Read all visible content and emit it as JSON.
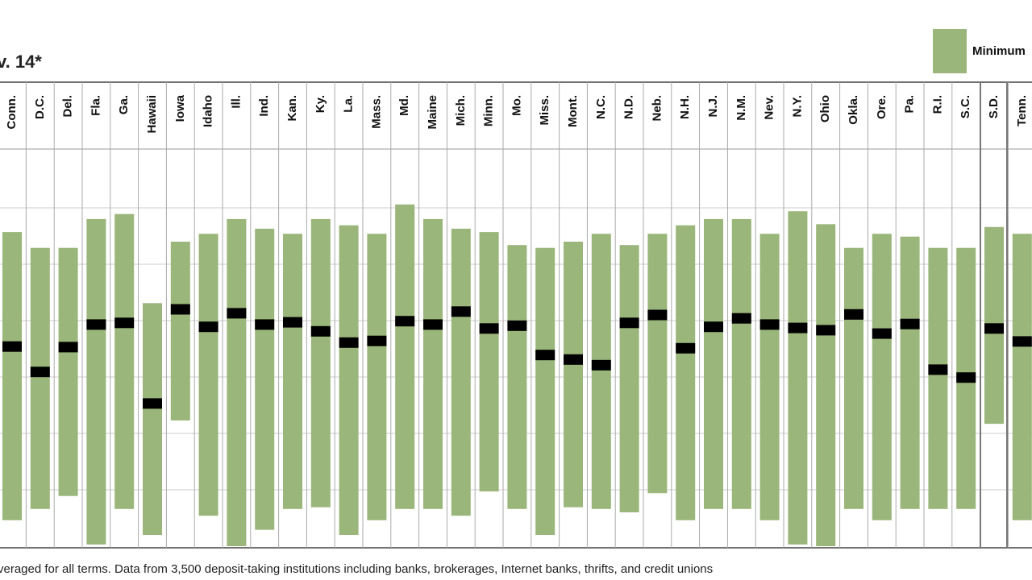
{
  "chart_data": {
    "type": "range",
    "title": "v. 14*",
    "legend": "Minimum",
    "color": "#9ab67a",
    "marker_color": "#000000",
    "footnote": "veraged for all terms. Data from 3,500 deposit-taking institutions including banks, brokerages, Internet banks, thrifts, and credit unions",
    "categories": [
      "Conn.",
      "D.C.",
      "Del.",
      "Fla.",
      "Ga.",
      "Hawaii",
      "Iowa",
      "Idaho",
      "Ill.",
      "Ind.",
      "Kan.",
      "Ky.",
      "La.",
      "Mass.",
      "Md.",
      "Maine",
      "Mich.",
      "Minn.",
      "Mo.",
      "Miss.",
      "Mont.",
      "N.C.",
      "N.D.",
      "Neb.",
      "N.H.",
      "N.J.",
      "N.M.",
      "Nev.",
      "N.Y.",
      "Ohio",
      "Okla.",
      "Ore.",
      "Pa.",
      "R.I.",
      "S.C.",
      "S.D.",
      "Tenn."
    ],
    "high": [
      5.57,
      5.29,
      5.29,
      5.8,
      5.89,
      4.31,
      5.4,
      5.54,
      5.8,
      5.63,
      5.54,
      5.8,
      5.69,
      5.54,
      6.06,
      5.8,
      5.63,
      5.57,
      5.34,
      5.29,
      5.4,
      5.54,
      5.34,
      5.54,
      5.69,
      5.8,
      5.8,
      5.54,
      5.94,
      5.71,
      5.29,
      5.54,
      5.49,
      5.29,
      5.29,
      5.66,
      5.54
    ],
    "low": [
      0.46,
      0.66,
      0.89,
      0.03,
      0.66,
      0.2,
      2.23,
      0.54,
      0,
      0.29,
      0.66,
      0.69,
      0.2,
      0.46,
      0.66,
      0.66,
      0.54,
      0.97,
      0.66,
      0.2,
      0.69,
      0.66,
      0.6,
      0.94,
      0.46,
      0.66,
      0.66,
      0.46,
      0.03,
      0,
      0.66,
      0.46,
      0.66,
      0.66,
      0.66,
      2.17,
      0.46
    ],
    "mid": [
      3.54,
      3.09,
      3.53,
      3.93,
      3.96,
      2.53,
      4.2,
      3.89,
      4.13,
      3.93,
      3.97,
      3.81,
      3.61,
      3.64,
      3.99,
      3.93,
      4.16,
      3.86,
      3.91,
      3.39,
      3.31,
      3.21,
      3.96,
      4.1,
      3.51,
      3.89,
      4.04,
      3.93,
      3.87,
      3.83,
      4.11,
      3.77,
      3.94,
      3.13,
      2.99,
      3.86,
      3.63
    ],
    "ylim": [
      0,
      7
    ],
    "yticks": [
      1,
      2,
      3,
      4,
      5,
      6
    ],
    "grid": true
  }
}
